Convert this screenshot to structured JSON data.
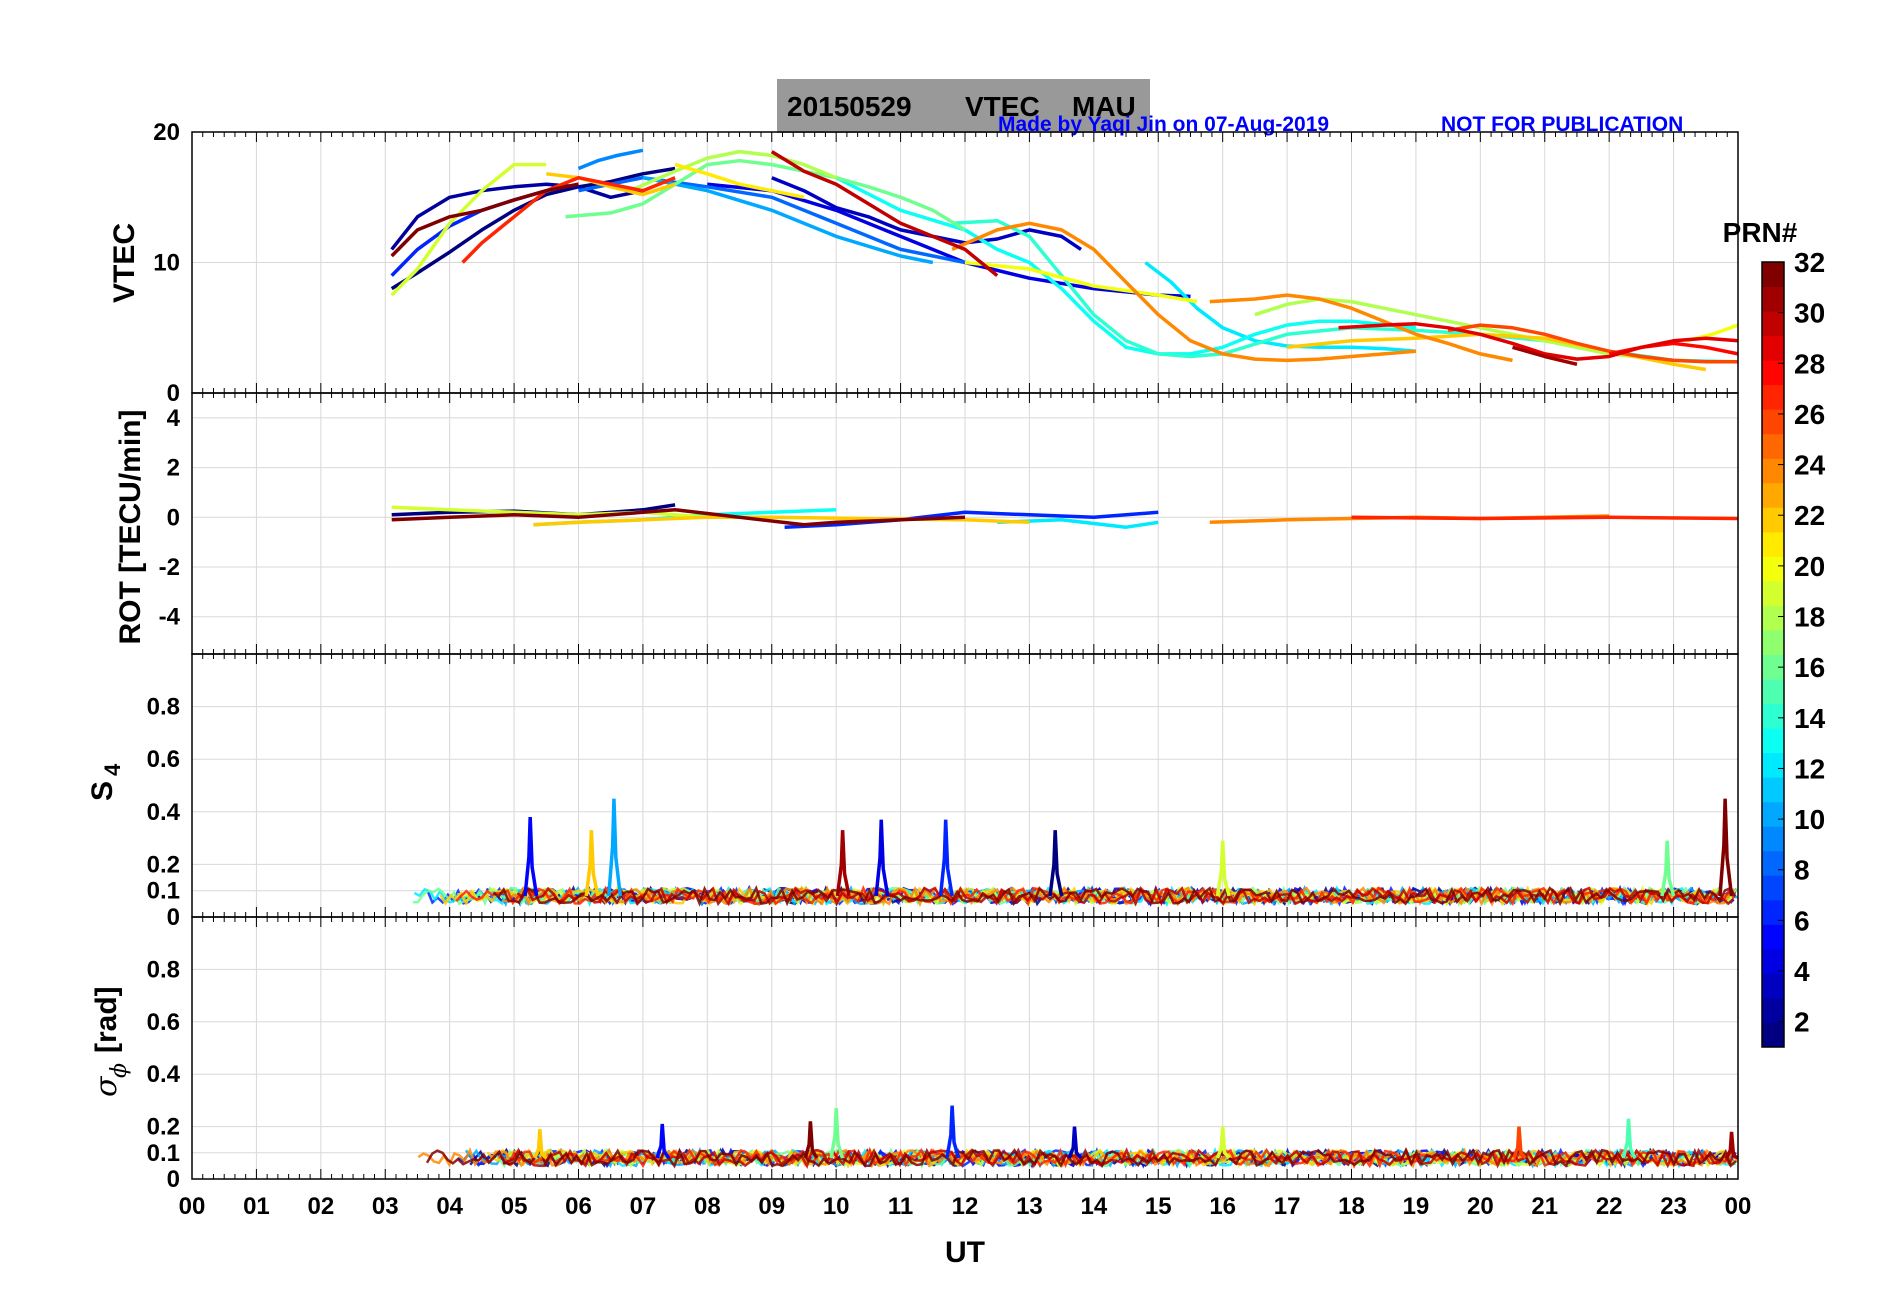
{
  "title": {
    "date": "20150529",
    "product": "VTEC",
    "station": "MAU",
    "banner_bg": "#999999"
  },
  "credit": "Made by Yaqi Jin on 07-Aug-2019",
  "notice": "NOT FOR PUBLICATION",
  "credit_color": "#0000ff",
  "xaxis": {
    "label": "UT",
    "ticks": [
      "00",
      "01",
      "02",
      "03",
      "04",
      "05",
      "06",
      "07",
      "08",
      "09",
      "10",
      "11",
      "12",
      "13",
      "14",
      "15",
      "16",
      "17",
      "18",
      "19",
      "20",
      "21",
      "22",
      "23",
      "00"
    ]
  },
  "colorbar": {
    "title": "PRN#",
    "ticks": [
      "2",
      "4",
      "6",
      "8",
      "10",
      "12",
      "14",
      "16",
      "18",
      "20",
      "22",
      "24",
      "26",
      "28",
      "30",
      "32"
    ],
    "range": [
      1,
      32
    ],
    "colormap": "jet"
  },
  "chart_data": [
    {
      "type": "line",
      "panel": "vtec",
      "ylabel": "VTEC",
      "ylim": [
        0,
        20
      ],
      "yticks": [
        "0",
        "10",
        "20"
      ],
      "xlim": [
        0,
        24
      ],
      "grid": true,
      "series": [
        {
          "prn": 1,
          "x": [
            3.1,
            3.5,
            4.0,
            4.5,
            5.0,
            5.5,
            6.0,
            6.5,
            7.0,
            7.5
          ],
          "y": [
            8.0,
            9.2,
            10.8,
            12.5,
            14.0,
            15.2,
            15.8,
            16.2,
            16.8,
            17.2
          ]
        },
        {
          "prn": 2,
          "x": [
            3.1,
            3.5,
            4.0,
            4.5,
            5.0,
            5.5,
            6.0,
            6.5,
            7.0
          ],
          "y": [
            11.0,
            13.5,
            15.0,
            15.5,
            15.8,
            16.0,
            15.8,
            15.0,
            15.5
          ]
        },
        {
          "prn": 3,
          "x": [
            9.0,
            9.5,
            10.0,
            10.5,
            11.0,
            11.5,
            12.0,
            12.5,
            13.0,
            13.5,
            13.8
          ],
          "y": [
            16.5,
            15.5,
            14.2,
            13.5,
            12.5,
            12.0,
            11.5,
            11.8,
            12.5,
            12.0,
            11.0
          ]
        },
        {
          "prn": 4,
          "x": [
            8.0,
            9.0,
            10.0,
            11.0,
            12.0,
            13.0,
            14.0,
            15.0,
            15.5
          ],
          "y": [
            16.0,
            15.5,
            14.0,
            12.0,
            10.0,
            8.8,
            8.0,
            7.5,
            7.4
          ]
        },
        {
          "prn": 6,
          "x": [
            3.1,
            3.5,
            4.0,
            4.5,
            5.0,
            5.5,
            6.0
          ],
          "y": [
            9.0,
            11.0,
            12.8,
            14.0,
            14.8,
            15.5,
            16.0
          ]
        },
        {
          "prn": 8,
          "x": [
            6.0,
            7.0,
            8.0,
            9.0,
            10.0,
            11.0,
            12.0
          ],
          "y": [
            15.5,
            16.5,
            15.8,
            15.0,
            13.0,
            11.0,
            10.0
          ]
        },
        {
          "prn": 9,
          "x": [
            6.0,
            6.3,
            6.6,
            7.0
          ],
          "y": [
            17.2,
            17.8,
            18.2,
            18.6
          ]
        },
        {
          "prn": 10,
          "x": [
            7.0,
            8.0,
            9.0,
            10.0,
            11.0,
            11.5
          ],
          "y": [
            16.5,
            15.5,
            14.0,
            12.0,
            10.5,
            10.0
          ]
        },
        {
          "prn": 12,
          "x": [
            14.8,
            15.2,
            15.6,
            16.0,
            16.5,
            17.0,
            17.5,
            18.0,
            18.5,
            19.0
          ],
          "y": [
            10.0,
            8.5,
            6.5,
            5.0,
            4.0,
            3.6,
            3.5,
            3.5,
            3.4,
            3.2
          ]
        },
        {
          "prn": 13,
          "x": [
            10.0,
            11.0,
            12.0,
            12.5,
            13.0,
            13.5,
            14.0,
            14.5,
            15.0,
            15.5,
            16.0,
            16.5,
            17.0,
            17.5,
            18.0,
            19.0
          ],
          "y": [
            16.5,
            14.0,
            12.5,
            11.0,
            10.0,
            8.0,
            5.5,
            3.5,
            3.0,
            3.0,
            3.5,
            4.5,
            5.2,
            5.5,
            5.5,
            5.0
          ]
        },
        {
          "prn": 14,
          "x": [
            11.8,
            12.5,
            13.0,
            13.5,
            14.0,
            14.5,
            15.0,
            15.5,
            16.0,
            17.0,
            18.0,
            19.0,
            20.0,
            21.0,
            22.0,
            23.0,
            24.0
          ],
          "y": [
            13.0,
            13.2,
            12.0,
            9.0,
            6.0,
            4.0,
            3.0,
            2.8,
            3.0,
            4.5,
            5.0,
            4.8,
            4.5,
            4.0,
            3.2,
            2.5,
            2.4
          ]
        },
        {
          "prn": 16,
          "x": [
            5.8,
            6.5,
            7.0,
            7.5,
            8.0,
            8.5,
            9.0,
            9.5,
            10.0,
            10.5,
            11.0,
            11.5,
            12.0
          ],
          "y": [
            13.5,
            13.8,
            14.5,
            16.0,
            17.5,
            17.8,
            17.5,
            17.0,
            16.5,
            15.8,
            15.0,
            14.0,
            12.5
          ]
        },
        {
          "prn": 18,
          "x": [
            6.8,
            7.5,
            8.0,
            8.5,
            9.0,
            9.5,
            10.0
          ],
          "y": [
            15.5,
            17.0,
            18.0,
            18.5,
            18.2,
            17.5,
            16.5
          ]
        },
        {
          "prn": 18,
          "x": [
            16.5,
            17.0,
            17.5,
            18.0,
            18.5,
            19.0,
            19.5,
            20.0,
            21.0,
            22.0,
            23.0
          ],
          "y": [
            6.0,
            6.8,
            7.2,
            7.0,
            6.5,
            6.0,
            5.5,
            5.0,
            4.0,
            3.0,
            2.5
          ]
        },
        {
          "prn": 19,
          "x": [
            3.1,
            3.5,
            4.0,
            4.5,
            5.0,
            5.5
          ],
          "y": [
            7.5,
            9.5,
            13.0,
            15.5,
            17.5,
            17.5
          ]
        },
        {
          "prn": 20,
          "x": [
            12.0,
            13.0,
            14.0,
            15.0,
            15.6
          ],
          "y": [
            10.0,
            9.5,
            8.2,
            7.5,
            7.0
          ]
        },
        {
          "prn": 20,
          "x": [
            23.2,
            23.6,
            24.0
          ],
          "y": [
            4.0,
            4.5,
            5.2
          ]
        },
        {
          "prn": 21,
          "x": [
            7.5,
            8.0,
            8.5,
            9.0,
            9.5
          ],
          "y": [
            17.5,
            16.8,
            16.0,
            15.5,
            15.0
          ]
        },
        {
          "prn": 22,
          "x": [
            5.5,
            6.0,
            6.5,
            7.0,
            7.5
          ],
          "y": [
            16.8,
            16.5,
            15.8,
            15.2,
            16.0
          ]
        },
        {
          "prn": 22,
          "x": [
            17.0,
            18.0,
            19.0,
            20.0,
            21.0,
            22.0,
            23.0,
            23.5
          ],
          "y": [
            3.5,
            4.0,
            4.2,
            4.5,
            4.2,
            3.2,
            2.2,
            1.8
          ]
        },
        {
          "prn": 24,
          "x": [
            11.8,
            12.5,
            13.0,
            13.5,
            14.0,
            14.5,
            15.0,
            15.5,
            16.0,
            16.5,
            17.0,
            17.5,
            18.0,
            18.5,
            19.0
          ],
          "y": [
            11.0,
            12.5,
            13.0,
            12.5,
            11.0,
            8.5,
            6.0,
            4.0,
            3.0,
            2.6,
            2.5,
            2.6,
            2.8,
            3.0,
            3.2
          ]
        },
        {
          "prn": 24,
          "x": [
            15.8,
            16.5,
            17.0,
            17.5,
            18.0,
            18.5,
            19.0,
            19.5,
            20.0,
            20.5
          ],
          "y": [
            7.0,
            7.2,
            7.5,
            7.2,
            6.5,
            5.5,
            4.5,
            3.8,
            3.0,
            2.5
          ]
        },
        {
          "prn": 26,
          "x": [
            19.5,
            20.0,
            20.5,
            21.0,
            21.5,
            22.0,
            22.5,
            23.0,
            23.5,
            24.0
          ],
          "y": [
            4.8,
            5.2,
            5.0,
            4.5,
            3.8,
            3.2,
            2.8,
            2.5,
            2.4,
            2.4
          ]
        },
        {
          "prn": 27,
          "x": [
            4.2,
            4.5,
            5.0,
            5.5,
            6.0,
            6.5,
            7.0,
            7.5
          ],
          "y": [
            10.0,
            11.5,
            13.5,
            15.5,
            16.5,
            16.0,
            15.5,
            16.5
          ]
        },
        {
          "prn": 28,
          "x": [
            22.0,
            22.5,
            23.0,
            23.5,
            24.0
          ],
          "y": [
            3.0,
            3.5,
            3.8,
            3.5,
            3.0
          ]
        },
        {
          "prn": 29,
          "x": [
            17.8,
            18.5,
            19.0,
            19.5,
            20.0,
            20.5,
            21.0,
            21.5,
            22.0,
            22.5,
            23.0,
            23.5,
            24.0
          ],
          "y": [
            5.0,
            5.2,
            5.3,
            5.0,
            4.5,
            3.8,
            3.0,
            2.6,
            2.8,
            3.5,
            4.0,
            4.2,
            4.0
          ]
        },
        {
          "prn": 30,
          "x": [
            9.0,
            9.5,
            10.0,
            10.5,
            11.0,
            11.5,
            12.0,
            12.5
          ],
          "y": [
            18.5,
            17.0,
            16.0,
            14.5,
            13.0,
            12.0,
            11.0,
            9.0
          ]
        },
        {
          "prn": 31,
          "x": [
            20.5,
            21.0,
            21.5
          ],
          "y": [
            3.5,
            2.8,
            2.2
          ]
        },
        {
          "prn": 32,
          "x": [
            3.1,
            3.5,
            4.0,
            4.5,
            5.0,
            5.5,
            6.0
          ],
          "y": [
            10.5,
            12.5,
            13.5,
            14.0,
            14.8,
            15.5,
            16.0
          ]
        }
      ]
    },
    {
      "type": "line",
      "panel": "rot",
      "ylabel": "ROT [TECU/min]",
      "ylim": [
        -5.5,
        5
      ],
      "yticks": [
        "-4",
        "-2",
        "0",
        "2",
        "4"
      ],
      "xlim": [
        0,
        24
      ],
      "grid": true,
      "series": [
        {
          "prn": 1,
          "x": [
            3.1,
            4.0,
            5.0,
            6.0,
            7.0,
            7.5
          ],
          "y": [
            0.1,
            0.2,
            0.25,
            0.1,
            0.3,
            0.5
          ]
        },
        {
          "prn": 6,
          "x": [
            9.2,
            10.0,
            11.0,
            12.0,
            13.0,
            14.0,
            15.0
          ],
          "y": [
            -0.4,
            -0.3,
            -0.1,
            0.2,
            0.1,
            0.0,
            0.2
          ]
        },
        {
          "prn": 13,
          "x": [
            5.3,
            6.0,
            7.0,
            8.0,
            9.0,
            10.0
          ],
          "y": [
            -0.3,
            -0.2,
            -0.1,
            0.1,
            0.2,
            0.3
          ]
        },
        {
          "prn": 12,
          "x": [
            12.5,
            13.5,
            14.5,
            15.0
          ],
          "y": [
            -0.2,
            -0.1,
            -0.4,
            -0.2
          ]
        },
        {
          "prn": 19,
          "x": [
            3.1,
            4.0,
            5.0,
            6.0,
            7.0,
            8.0
          ],
          "y": [
            0.4,
            0.3,
            0.2,
            0.1,
            0.2,
            0.0
          ]
        },
        {
          "prn": 22,
          "x": [
            5.3,
            6.0,
            7.0,
            8.0,
            9.0,
            12.0,
            13.0
          ],
          "y": [
            -0.3,
            -0.2,
            -0.1,
            0.0,
            0.0,
            -0.1,
            -0.2
          ]
        },
        {
          "prn": 24,
          "x": [
            15.8,
            17.0,
            18.0,
            19.0,
            20.0,
            21.0,
            22.0
          ],
          "y": [
            -0.2,
            -0.1,
            -0.05,
            0.0,
            -0.05,
            0.0,
            0.05
          ]
        },
        {
          "prn": 27,
          "x": [
            18.0,
            20.0,
            22.0,
            24.0
          ],
          "y": [
            0.0,
            -0.05,
            0.0,
            -0.05
          ]
        },
        {
          "prn": 32,
          "x": [
            3.1,
            4.0,
            5.0,
            6.0,
            7.0,
            7.5,
            9.5,
            10.0,
            11.0,
            12.0
          ],
          "y": [
            -0.1,
            0.0,
            0.1,
            0.0,
            0.2,
            0.3,
            -0.3,
            -0.2,
            -0.1,
            0.0
          ]
        }
      ]
    },
    {
      "type": "line",
      "panel": "s4",
      "ylabel": "S4",
      "ylim": [
        0,
        1
      ],
      "yticks": [
        "0",
        "0.1",
        "0.2",
        "0.4",
        "0.6",
        "0.8"
      ],
      "xlim": [
        0,
        24
      ],
      "grid": true,
      "notes": "noise floor ~0.05-0.1 from 03 UT to 24 UT with spikes",
      "spikes": [
        {
          "x": 5.25,
          "y": 0.38,
          "prn": 5
        },
        {
          "x": 6.2,
          "y": 0.33,
          "prn": 22
        },
        {
          "x": 6.55,
          "y": 0.45,
          "prn": 10
        },
        {
          "x": 10.1,
          "y": 0.33,
          "prn": 31
        },
        {
          "x": 10.7,
          "y": 0.37,
          "prn": 4
        },
        {
          "x": 11.7,
          "y": 0.37,
          "prn": 6
        },
        {
          "x": 13.4,
          "y": 0.33,
          "prn": 1
        },
        {
          "x": 16.0,
          "y": 0.29,
          "prn": 19
        },
        {
          "x": 22.9,
          "y": 0.29,
          "prn": 16
        },
        {
          "x": 23.8,
          "y": 0.45,
          "prn": 32
        }
      ]
    },
    {
      "type": "line",
      "panel": "sigma_phi",
      "ylabel": "σ ϕ [rad]",
      "ylim": [
        0,
        1
      ],
      "yticks": [
        "0",
        "0.1",
        "0.2",
        "0.4",
        "0.6",
        "0.8"
      ],
      "xlim": [
        0,
        24
      ],
      "grid": true,
      "notes": "noise floor ~0.05-0.1 from 03 UT to 24 UT with spikes",
      "spikes": [
        {
          "x": 5.4,
          "y": 0.19,
          "prn": 22
        },
        {
          "x": 7.3,
          "y": 0.21,
          "prn": 5
        },
        {
          "x": 9.6,
          "y": 0.22,
          "prn": 32
        },
        {
          "x": 10.0,
          "y": 0.27,
          "prn": 16
        },
        {
          "x": 11.8,
          "y": 0.28,
          "prn": 6
        },
        {
          "x": 13.7,
          "y": 0.2,
          "prn": 3
        },
        {
          "x": 16.0,
          "y": 0.2,
          "prn": 19
        },
        {
          "x": 20.6,
          "y": 0.2,
          "prn": 26
        },
        {
          "x": 22.3,
          "y": 0.23,
          "prn": 15
        },
        {
          "x": 23.9,
          "y": 0.18,
          "prn": 31
        }
      ]
    }
  ]
}
